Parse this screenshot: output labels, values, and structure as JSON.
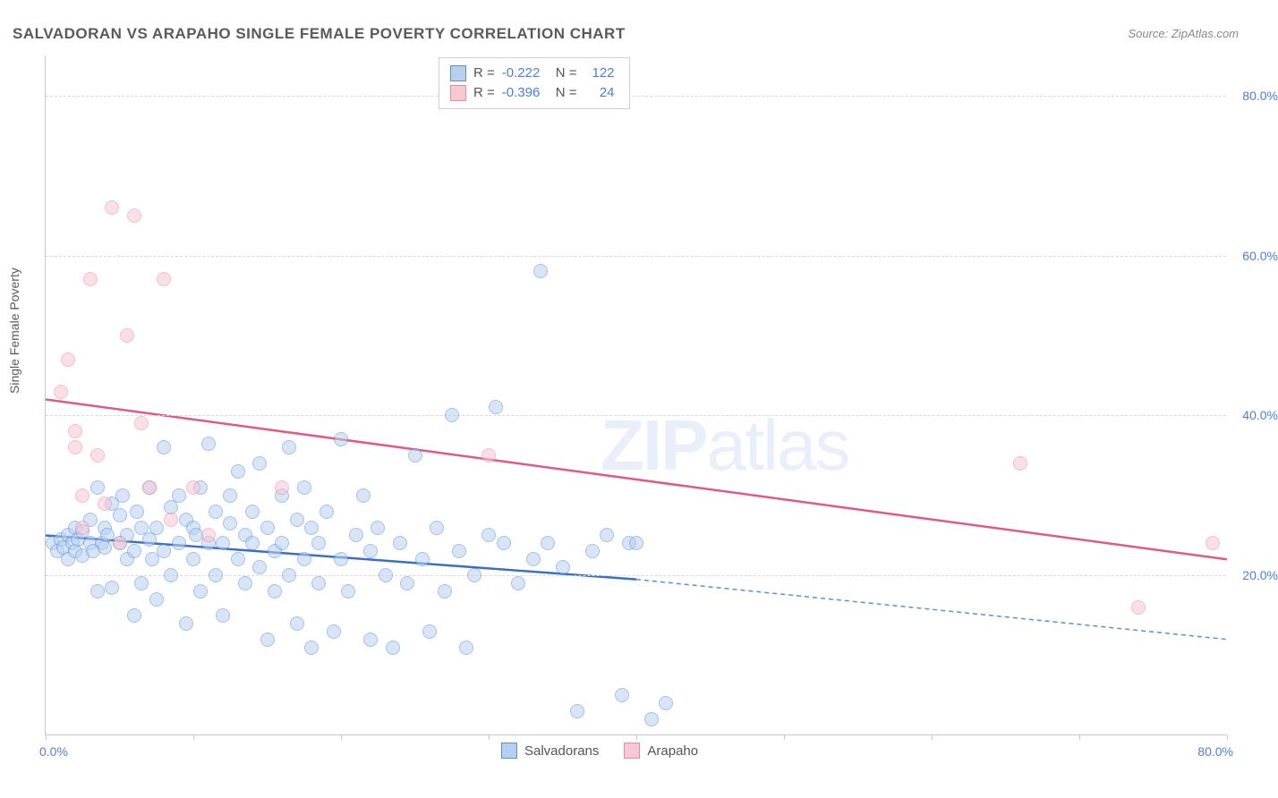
{
  "title": "SALVADORAN VS ARAPAHO SINGLE FEMALE POVERTY CORRELATION CHART",
  "source": "Source: ZipAtlas.com",
  "y_axis_title": "Single Female Poverty",
  "watermark_bold": "ZIP",
  "watermark_light": "atlas",
  "chart": {
    "type": "scatter",
    "xlim": [
      0,
      80
    ],
    "ylim": [
      0,
      85
    ],
    "y_ticks": [
      20,
      40,
      60,
      80
    ],
    "y_tick_labels": [
      "20.0%",
      "40.0%",
      "60.0%",
      "80.0%"
    ],
    "x_tick_positions": [
      0,
      10,
      20,
      30,
      40,
      50,
      60,
      70,
      80
    ],
    "x_label_min": "0.0%",
    "x_label_max": "80.0%",
    "background_color": "#ffffff",
    "grid_color": "#d8d8d8",
    "marker_radius": 8,
    "marker_stroke_width": 1.5
  },
  "series": [
    {
      "name": "Salvadorans",
      "fill": "#b8d0f0",
      "stroke": "#5a8fd8",
      "fill_opacity": 0.55,
      "R": "-0.222",
      "N": "122",
      "trend": {
        "x1": 0,
        "y1": 25,
        "x2": 40,
        "y2": 19.5,
        "color": "#3a6fc8",
        "width": 2.5
      },
      "trend_ext": {
        "x1": 40,
        "y1": 19.5,
        "x2": 80,
        "y2": 12,
        "color": "#5a8fd8",
        "width": 1.5,
        "dash": "5,4"
      },
      "points": [
        [
          0.5,
          24
        ],
        [
          0.8,
          23
        ],
        [
          1,
          24.5
        ],
        [
          1.2,
          23.5
        ],
        [
          1.5,
          25
        ],
        [
          1.5,
          22
        ],
        [
          1.8,
          24
        ],
        [
          2,
          26
        ],
        [
          2,
          23
        ],
        [
          2.2,
          24.5
        ],
        [
          2.5,
          22.5
        ],
        [
          2.5,
          25.5
        ],
        [
          3,
          24
        ],
        [
          3,
          27
        ],
        [
          3.2,
          23
        ],
        [
          3.5,
          31
        ],
        [
          3.5,
          18
        ],
        [
          3.8,
          24
        ],
        [
          4,
          23.5
        ],
        [
          4,
          26
        ],
        [
          4.2,
          25
        ],
        [
          4.5,
          29
        ],
        [
          4.5,
          18.5
        ],
        [
          5,
          24
        ],
        [
          5,
          27.5
        ],
        [
          5.2,
          30
        ],
        [
          5.5,
          22
        ],
        [
          5.5,
          25
        ],
        [
          6,
          15
        ],
        [
          6,
          23
        ],
        [
          6.2,
          28
        ],
        [
          6.5,
          26
        ],
        [
          6.5,
          19
        ],
        [
          7,
          24.5
        ],
        [
          7,
          31
        ],
        [
          7.2,
          22
        ],
        [
          7.5,
          17
        ],
        [
          7.5,
          26
        ],
        [
          8,
          36
        ],
        [
          8,
          23
        ],
        [
          8.5,
          28.5
        ],
        [
          8.5,
          20
        ],
        [
          9,
          24
        ],
        [
          9,
          30
        ],
        [
          9.5,
          27
        ],
        [
          9.5,
          14
        ],
        [
          10,
          26
        ],
        [
          10,
          22
        ],
        [
          10.2,
          25
        ],
        [
          10.5,
          31
        ],
        [
          10.5,
          18
        ],
        [
          11,
          36.5
        ],
        [
          11,
          24
        ],
        [
          11.5,
          28
        ],
        [
          11.5,
          20
        ],
        [
          12,
          24
        ],
        [
          12,
          15
        ],
        [
          12.5,
          26.5
        ],
        [
          12.5,
          30
        ],
        [
          13,
          22
        ],
        [
          13,
          33
        ],
        [
          13.5,
          19
        ],
        [
          13.5,
          25
        ],
        [
          14,
          28
        ],
        [
          14,
          24
        ],
        [
          14.5,
          21
        ],
        [
          14.5,
          34
        ],
        [
          15,
          12
        ],
        [
          15,
          26
        ],
        [
          15.5,
          18
        ],
        [
          15.5,
          23
        ],
        [
          16,
          30
        ],
        [
          16,
          24
        ],
        [
          16.5,
          20
        ],
        [
          16.5,
          36
        ],
        [
          17,
          14
        ],
        [
          17,
          27
        ],
        [
          17.5,
          22
        ],
        [
          17.5,
          31
        ],
        [
          18,
          11
        ],
        [
          18,
          26
        ],
        [
          18.5,
          19
        ],
        [
          18.5,
          24
        ],
        [
          19,
          28
        ],
        [
          19.5,
          13
        ],
        [
          20,
          22
        ],
        [
          20,
          37
        ],
        [
          20.5,
          18
        ],
        [
          21,
          25
        ],
        [
          21.5,
          30
        ],
        [
          22,
          12
        ],
        [
          22,
          23
        ],
        [
          22.5,
          26
        ],
        [
          23,
          20
        ],
        [
          23.5,
          11
        ],
        [
          24,
          24
        ],
        [
          24.5,
          19
        ],
        [
          25,
          35
        ],
        [
          25.5,
          22
        ],
        [
          26,
          13
        ],
        [
          26.5,
          26
        ],
        [
          27,
          18
        ],
        [
          27.5,
          40
        ],
        [
          28,
          23
        ],
        [
          28.5,
          11
        ],
        [
          29,
          20
        ],
        [
          30,
          25
        ],
        [
          30.5,
          41
        ],
        [
          31,
          24
        ],
        [
          32,
          19
        ],
        [
          33,
          22
        ],
        [
          33.5,
          58
        ],
        [
          34,
          24
        ],
        [
          35,
          21
        ],
        [
          36,
          3
        ],
        [
          37,
          23
        ],
        [
          38,
          25
        ],
        [
          39,
          5
        ],
        [
          39.5,
          24
        ],
        [
          40,
          24
        ],
        [
          41,
          2
        ],
        [
          42,
          4
        ]
      ]
    },
    {
      "name": "Arapaho",
      "fill": "#f7c7d2",
      "stroke": "#e88aa5",
      "fill_opacity": 0.55,
      "R": "-0.396",
      "N": "24",
      "trend": {
        "x1": 0,
        "y1": 42,
        "x2": 80,
        "y2": 22,
        "color": "#e05a85",
        "width": 2.5
      },
      "points": [
        [
          1,
          43
        ],
        [
          1.5,
          47
        ],
        [
          2,
          38
        ],
        [
          2,
          36
        ],
        [
          2.5,
          30
        ],
        [
          2.5,
          26
        ],
        [
          3,
          57
        ],
        [
          3.5,
          35
        ],
        [
          4,
          29
        ],
        [
          4.5,
          66
        ],
        [
          5,
          24
        ],
        [
          5.5,
          50
        ],
        [
          6,
          65
        ],
        [
          6.5,
          39
        ],
        [
          7,
          31
        ],
        [
          8,
          57
        ],
        [
          8.5,
          27
        ],
        [
          10,
          31
        ],
        [
          11,
          25
        ],
        [
          16,
          31
        ],
        [
          30,
          35
        ],
        [
          66,
          34
        ],
        [
          74,
          16
        ],
        [
          79,
          24
        ]
      ]
    }
  ],
  "legend_stats": {
    "r_label": "R =",
    "n_label": "N ="
  },
  "bottom_legend": [
    "Salvadorans",
    "Arapaho"
  ]
}
